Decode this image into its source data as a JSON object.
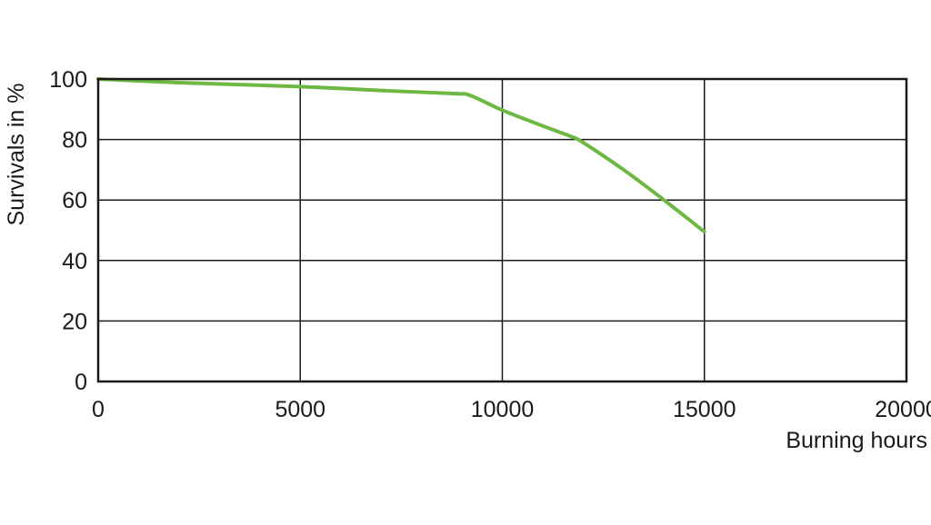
{
  "chart_data": {
    "type": "line",
    "title": "",
    "xlabel": "Burning hours",
    "ylabel": "Survivals in %",
    "xlim": [
      0,
      20000
    ],
    "ylim": [
      0,
      100
    ],
    "xticks": [
      0,
      5000,
      10000,
      15000,
      20000
    ],
    "yticks": [
      0,
      20,
      40,
      60,
      80,
      100
    ],
    "grid": true,
    "series": [
      {
        "color": "#6cb843",
        "x": [
          0,
          2000,
          5000,
          7000,
          8800,
          9200,
          10000,
          11000,
          11700,
          12000,
          13000,
          14000,
          15000
        ],
        "y": [
          100,
          98.8,
          97.5,
          96.2,
          95.2,
          94.6,
          89.7,
          84.5,
          81,
          79,
          70,
          60,
          49.5
        ]
      }
    ]
  }
}
